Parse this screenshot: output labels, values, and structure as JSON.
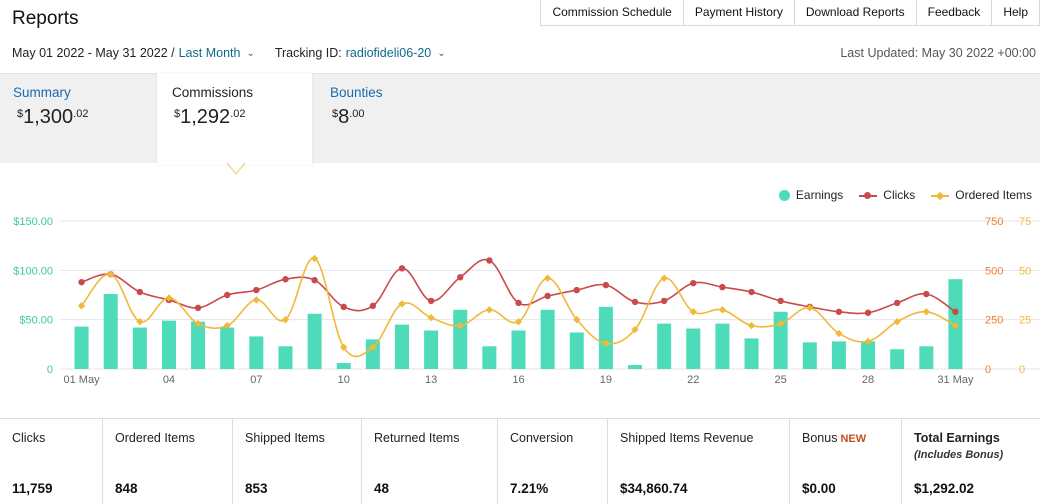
{
  "page": {
    "title": "Reports"
  },
  "topnav": [
    "Commission Schedule",
    "Payment History",
    "Download Reports",
    "Feedback",
    "Help"
  ],
  "filters": {
    "date_range": "May 01 2022 - May 31 2022 /",
    "date_preset": "Last Month",
    "tracking_label": "Tracking ID:",
    "tracking_id": "radiofideli06-20",
    "last_updated": "Last Updated: May 30 2022 +00:00"
  },
  "tabs": [
    {
      "label": "Summary",
      "currency": "$",
      "amount": "1,300",
      "cents": ".02"
    },
    {
      "label": "Commissions",
      "currency": "$",
      "amount": "1,292",
      "cents": ".02",
      "active": true
    },
    {
      "label": "Bounties",
      "currency": "$",
      "amount": "8",
      "cents": ".00"
    }
  ],
  "legend": {
    "earnings": "Earnings",
    "clicks": "Clicks",
    "ordered": "Ordered Items"
  },
  "colors": {
    "earnings": "#4ddbb9",
    "clicks": "#c94a4a",
    "ordered": "#f0b93a",
    "tab_link": "#1b6ab0",
    "new_badge": "#c7511f"
  },
  "chart_data": {
    "type": "bar+line",
    "x_tick_labels": [
      "01 May",
      "04",
      "07",
      "10",
      "13",
      "16",
      "19",
      "22",
      "25",
      "28",
      "31 May"
    ],
    "x": [
      "01",
      "02",
      "03",
      "04",
      "05",
      "06",
      "07",
      "08",
      "09",
      "10",
      "11",
      "12",
      "13",
      "14",
      "15",
      "16",
      "17",
      "18",
      "19",
      "20",
      "21",
      "22",
      "23",
      "24",
      "25",
      "26",
      "27",
      "28",
      "29",
      "30",
      "31"
    ],
    "left_axis": {
      "ticks": [
        "0",
        "$50.00",
        "$100.00",
        "$150.00"
      ],
      "ylim": [
        0,
        150
      ]
    },
    "right_axis_clicks": {
      "ticks": [
        "0",
        "250",
        "500",
        "750"
      ],
      "ylim": [
        0,
        750
      ]
    },
    "right_axis_ordered": {
      "ticks": [
        "0",
        "25",
        "50",
        "75"
      ],
      "ylim": [
        0,
        75
      ]
    },
    "series": [
      {
        "name": "Earnings",
        "type": "bar",
        "values": [
          43,
          76,
          42,
          49,
          48,
          42,
          33,
          23,
          56,
          6,
          30,
          45,
          39,
          60,
          23,
          39,
          60,
          37,
          63,
          4,
          46,
          41,
          46,
          31,
          58,
          27,
          28,
          28,
          20,
          23,
          91
        ]
      },
      {
        "name": "Clicks",
        "type": "line",
        "values": [
          440,
          480,
          390,
          350,
          310,
          375,
          400,
          455,
          450,
          315,
          320,
          510,
          345,
          465,
          550,
          335,
          370,
          400,
          425,
          340,
          345,
          435,
          415,
          390,
          345,
          315,
          290,
          285,
          335,
          380,
          290
        ]
      },
      {
        "name": "Ordered Items",
        "type": "line",
        "values": [
          32,
          48,
          24,
          36,
          23,
          22,
          35,
          25,
          56,
          11,
          11,
          33,
          26,
          22,
          30,
          24,
          46,
          25,
          13,
          20,
          46,
          29,
          30,
          22,
          23,
          31,
          18,
          14,
          24,
          29,
          22
        ]
      }
    ]
  },
  "stats": [
    {
      "label": "Clicks",
      "value": "11,759"
    },
    {
      "label": "Ordered Items",
      "value": "848"
    },
    {
      "label": "Shipped Items",
      "value": "853"
    },
    {
      "label": "Returned Items",
      "value": "48"
    },
    {
      "label": "Conversion",
      "value": "7.21%"
    },
    {
      "label": "Shipped Items Revenue",
      "value": "$34,860.74"
    },
    {
      "label": "Bonus",
      "badge": "NEW",
      "value": "$0.00"
    },
    {
      "label": "Total Earnings",
      "sub": "(Includes Bonus)",
      "value": "$1,292.02"
    }
  ]
}
